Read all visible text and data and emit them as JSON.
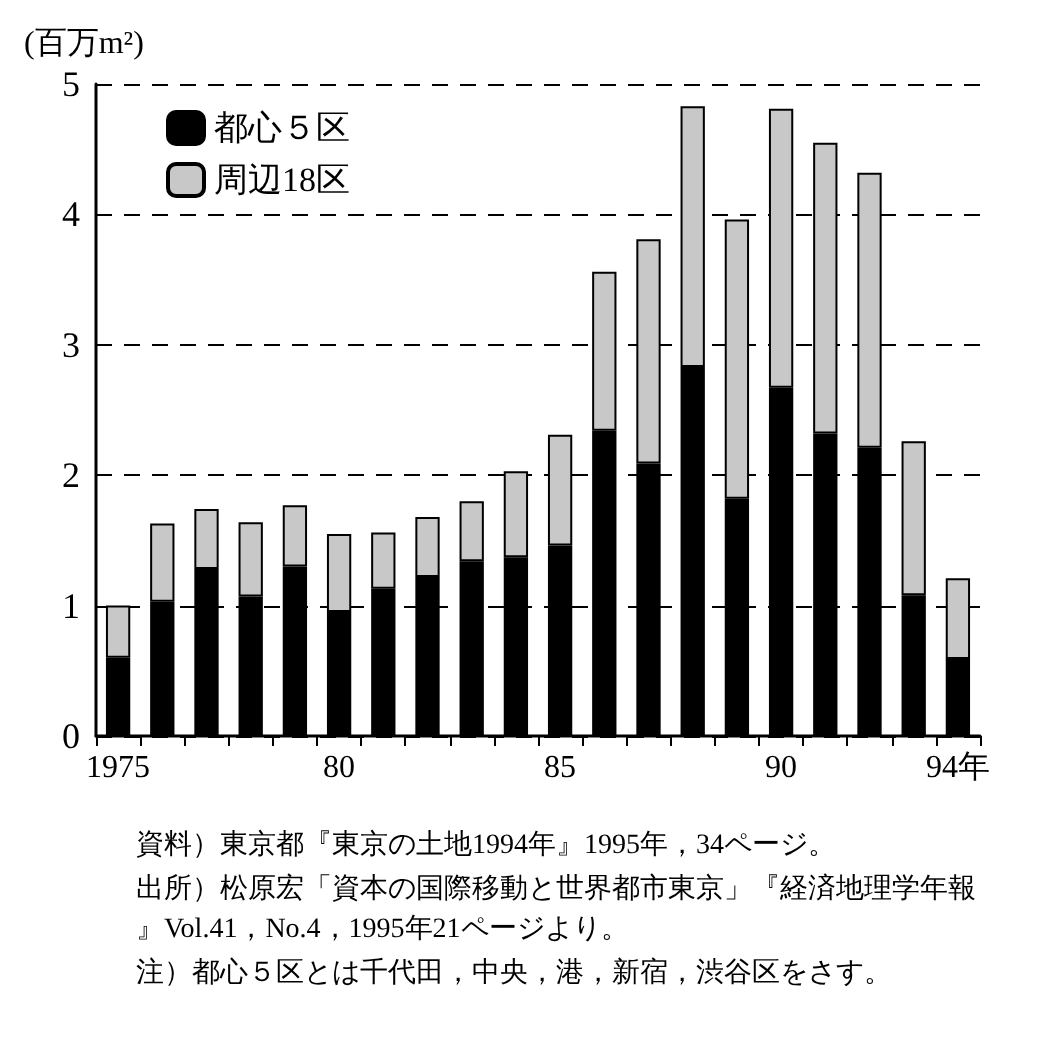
{
  "chart_data": {
    "type": "bar",
    "stacked": true,
    "ylabel": "(百万m²)",
    "categories": [
      "1975",
      null,
      null,
      null,
      null,
      "80",
      null,
      null,
      null,
      null,
      "85",
      null,
      null,
      null,
      null,
      "90",
      null,
      null,
      null,
      "94年"
    ],
    "series": [
      {
        "name": "都心５区",
        "color": "#000000",
        "values": [
          0.6,
          1.03,
          1.28,
          1.07,
          1.3,
          0.95,
          1.13,
          1.22,
          1.34,
          1.37,
          1.46,
          2.34,
          2.09,
          2.83,
          1.82,
          2.67,
          2.32,
          2.21,
          1.08,
          0.59
        ]
      },
      {
        "name": "周辺18区",
        "color": "#c8c8c8",
        "values": [
          0.4,
          0.6,
          0.46,
          0.57,
          0.47,
          0.6,
          0.43,
          0.46,
          0.46,
          0.66,
          0.85,
          1.22,
          1.72,
          2.0,
          2.14,
          2.14,
          2.23,
          2.11,
          1.18,
          0.62
        ]
      }
    ],
    "ylim": [
      0,
      5
    ],
    "yticks": [
      0,
      1,
      2,
      3,
      4,
      5
    ],
    "grid": "y",
    "legend": "top left",
    "annotations": [
      "資料）東京都『東京の土地1994年』1995年，34ページ。",
      "出所）松原宏「資本の国際移動と世界都市東京」『経済地理学年報』Vol.41，No.4，1995年21ページより。",
      "注）都心５区とは千代田，中央，港，新宿，渋谷区をさす。"
    ]
  }
}
